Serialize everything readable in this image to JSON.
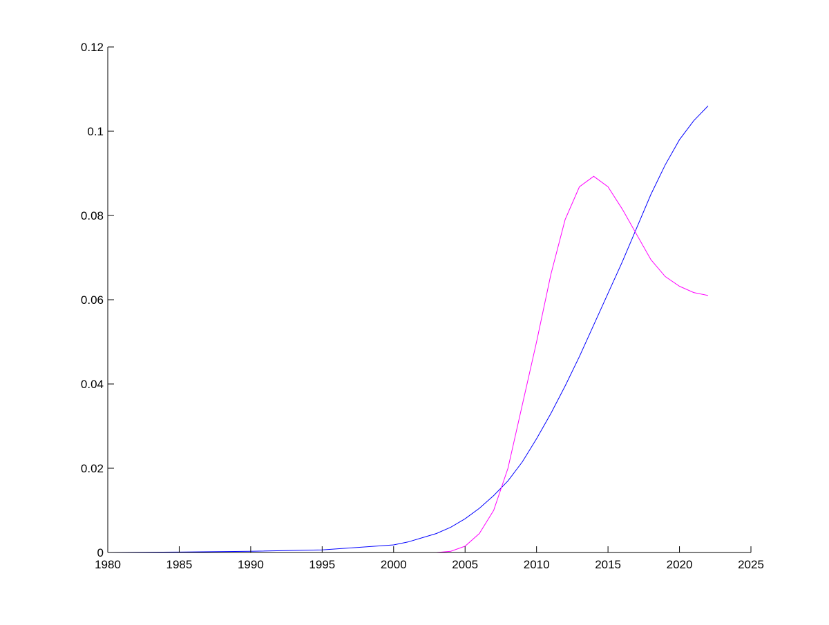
{
  "chart_data": {
    "type": "line",
    "title": "",
    "xlabel": "",
    "ylabel": "",
    "xlim": [
      1980,
      2025
    ],
    "ylim": [
      0,
      0.12
    ],
    "grid": false,
    "xticks": [
      "1980",
      "1985",
      "1990",
      "1995",
      "2000",
      "2005",
      "2010",
      "2015",
      "2020",
      "2025"
    ],
    "yticks": [
      "0",
      "0.02",
      "0.04",
      "0.06",
      "0.08",
      "0.1",
      "0.12"
    ],
    "series": [
      {
        "color": "#0000ff",
        "x": [
          1980,
          1985,
          1990,
          1995,
          2000,
          2001,
          2002,
          2003,
          2004,
          2005,
          2006,
          2007,
          2008,
          2009,
          2010,
          2011,
          2012,
          2013,
          2014,
          2015,
          2016,
          2017,
          2018,
          2019,
          2020,
          2021,
          2022
        ],
        "y": [
          0,
          0.0001,
          0.0003,
          0.0006,
          0.0018,
          0.0025,
          0.0035,
          0.0045,
          0.006,
          0.008,
          0.0105,
          0.0135,
          0.017,
          0.0215,
          0.027,
          0.033,
          0.0395,
          0.0465,
          0.054,
          0.0615,
          0.069,
          0.077,
          0.085,
          0.092,
          0.098,
          0.1025,
          0.106
        ]
      },
      {
        "color": "#ff00ff",
        "x": [
          1980,
          2003,
          2004,
          2005,
          2006,
          2007,
          2008,
          2009,
          2010,
          2011,
          2012,
          2013,
          2014,
          2015,
          2016,
          2017,
          2018,
          2019,
          2020,
          2021,
          2022
        ],
        "y": [
          0,
          0,
          0.0003,
          0.0015,
          0.0045,
          0.01,
          0.02,
          0.035,
          0.05,
          0.066,
          0.079,
          0.0868,
          0.0893,
          0.0868,
          0.0815,
          0.0755,
          0.0695,
          0.0655,
          0.0632,
          0.0617,
          0.061
        ]
      }
    ]
  }
}
